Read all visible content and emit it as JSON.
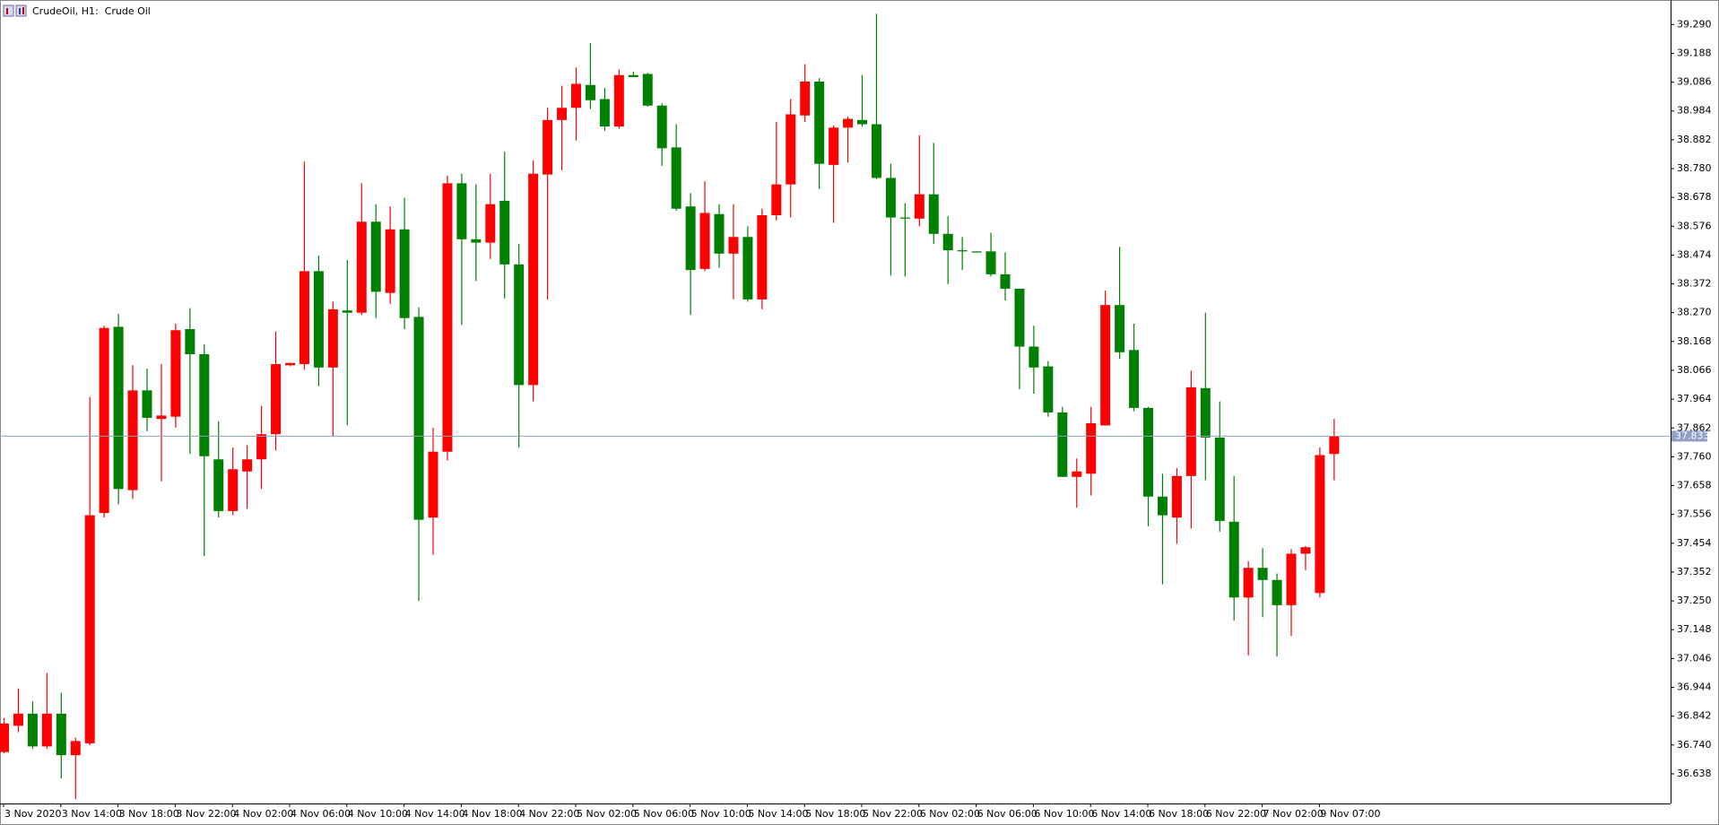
{
  "chart_data": {
    "type": "candlestick",
    "title": "CrudeOil, H1:  Crude Oil",
    "categories": [
      "3 Nov 2020",
      null,
      null,
      null,
      "3 Nov 14:00",
      null,
      null,
      null,
      "3 Nov 18:00",
      null,
      null,
      null,
      "3 Nov 22:00",
      null,
      null,
      null,
      "4 Nov 02:00",
      null,
      null,
      null,
      "4 Nov 06:00",
      null,
      null,
      null,
      "4 Nov 10:00",
      null,
      null,
      null,
      "4 Nov 14:00",
      null,
      null,
      null,
      "4 Nov 18:00",
      null,
      null,
      null,
      "4 Nov 22:00",
      null,
      null,
      null,
      "5 Nov 02:00",
      null,
      null,
      null,
      "5 Nov 06:00",
      null,
      null,
      null,
      "5 Nov 10:00",
      null,
      null,
      null,
      "5 Nov 14:00",
      null,
      null,
      null,
      "5 Nov 18:00",
      null,
      null,
      null,
      "5 Nov 22:00",
      null,
      null,
      null,
      "6 Nov 02:00",
      null,
      null,
      null,
      "6 Nov 06:00",
      null,
      null,
      null,
      "6 Nov 10:00",
      null,
      null,
      null,
      "6 Nov 14:00",
      null,
      null,
      null,
      "6 Nov 18:00",
      null,
      null,
      null,
      "6 Nov 22:00",
      null,
      null,
      null,
      "7 Nov 02:00",
      null,
      null,
      null,
      "9 Nov 07:00",
      null
    ],
    "open": [
      36.715,
      36.808,
      36.851,
      36.735,
      36.851,
      36.704,
      36.746,
      37.561,
      38.22,
      37.642,
      37.995,
      37.894,
      37.902,
      38.212,
      38.123,
      37.751,
      37.568,
      37.708,
      37.751,
      37.84,
      38.084,
      38.088,
      38.417,
      38.076,
      38.278,
      38.27,
      38.592,
      38.34,
      38.565,
      38.255,
      37.545,
      37.778,
      38.728,
      38.53,
      38.518,
      38.666,
      38.441,
      38.014,
      38.759,
      38.952,
      38.995,
      39.076,
      39.026,
      38.929,
      39.111,
      39.115,
      39.003,
      38.855,
      38.646,
      38.425,
      38.619,
      38.479,
      38.538,
      38.317,
      38.615,
      38.724,
      38.968,
      39.088,
      38.793,
      38.925,
      38.952,
      38.937,
      38.747,
      38.607,
      38.603,
      38.689,
      38.549,
      38.491,
      38.487,
      38.487,
      38.406,
      38.355,
      38.15,
      38.08,
      37.917,
      37.689,
      37.7,
      37.871,
      38.297,
      38.138,
      37.933,
      37.619,
      37.545,
      37.692,
      38.003,
      37.828,
      37.53,
      37.262,
      37.367,
      37.324,
      37.235,
      37.417,
      37.278,
      37.77
    ],
    "high": [
      36.836,
      36.94,
      36.894,
      36.995,
      36.925,
      36.766,
      37.972,
      38.224,
      38.266,
      38.084,
      38.072,
      38.088,
      38.231,
      38.286,
      38.158,
      37.886,
      37.793,
      37.801,
      37.94,
      38.204,
      38.092,
      38.805,
      38.472,
      38.309,
      38.456,
      38.728,
      38.654,
      38.646,
      38.677,
      38.289,
      37.863,
      38.755,
      38.762,
      38.724,
      38.762,
      38.84,
      38.514,
      38.809,
      38.995,
      39.073,
      39.138,
      39.224,
      39.065,
      39.131,
      39.123,
      39.119,
      39.011,
      38.937,
      38.693,
      38.735,
      38.654,
      38.654,
      38.576,
      38.638,
      38.945,
      39.026,
      39.15,
      39.1,
      38.933,
      38.964,
      39.111,
      39.328,
      38.797,
      38.658,
      38.898,
      38.871,
      38.611,
      38.538,
      38.487,
      38.553,
      38.483,
      38.355,
      38.224,
      38.099,
      37.937,
      37.754,
      37.937,
      38.348,
      38.503,
      38.231,
      37.937,
      37.7,
      37.72,
      38.065,
      38.27,
      37.956,
      37.692,
      37.39,
      37.437,
      37.347,
      37.433,
      37.444,
      37.793,
      37.894
    ],
    "low": [
      36.71,
      36.785,
      36.727,
      36.727,
      36.622,
      36.549,
      36.739,
      37.545,
      37.592,
      37.611,
      37.851,
      37.673,
      37.863,
      37.77,
      37.409,
      37.545,
      37.553,
      37.576,
      37.646,
      37.782,
      38.08,
      38.068,
      38.01,
      37.832,
      37.871,
      38.262,
      38.251,
      38.301,
      38.212,
      37.25,
      37.413,
      37.747,
      38.227,
      38.382,
      38.46,
      38.32,
      37.793,
      37.956,
      38.317,
      38.774,
      38.879,
      38.991,
      38.914,
      38.921,
      39.104,
      38.999,
      38.79,
      38.631,
      38.262,
      38.417,
      38.429,
      38.317,
      38.309,
      38.282,
      38.596,
      38.607,
      38.945,
      38.708,
      38.588,
      38.801,
      38.929,
      38.743,
      38.402,
      38.398,
      38.576,
      38.514,
      38.371,
      38.421,
      38.483,
      38.398,
      38.313,
      37.999,
      37.983,
      37.902,
      37.689,
      37.58,
      37.623,
      37.871,
      38.107,
      37.921,
      37.514,
      37.309,
      37.452,
      37.506,
      37.677,
      37.495,
      37.181,
      37.057,
      37.192,
      37.053,
      37.126,
      37.359,
      37.262,
      37.677
    ],
    "close": [
      36.816,
      36.851,
      36.735,
      36.851,
      36.704,
      36.754,
      37.553,
      38.216,
      37.646,
      37.995,
      37.898,
      37.906,
      38.208,
      38.123,
      37.762,
      37.568,
      37.716,
      37.751,
      37.84,
      38.088,
      38.092,
      38.417,
      38.076,
      38.282,
      38.27,
      38.592,
      38.344,
      38.565,
      38.251,
      37.537,
      37.778,
      38.728,
      38.53,
      38.518,
      38.654,
      38.441,
      38.014,
      38.762,
      38.952,
      38.995,
      39.08,
      39.022,
      38.929,
      39.111,
      39.104,
      39.003,
      38.852,
      38.638,
      38.421,
      38.623,
      38.479,
      38.538,
      38.317,
      38.615,
      38.724,
      38.972,
      39.088,
      38.797,
      38.925,
      38.956,
      38.937,
      38.747,
      38.607,
      38.603,
      38.689,
      38.549,
      38.491,
      38.487,
      38.483,
      38.406,
      38.355,
      38.15,
      38.076,
      37.917,
      37.689,
      37.708,
      37.879,
      38.297,
      38.13,
      37.933,
      37.619,
      37.553,
      37.692,
      38.006,
      37.828,
      37.533,
      37.262,
      37.367,
      37.324,
      37.235,
      37.417,
      37.44,
      37.766,
      37.833
    ],
    "up_color": "#ff0000",
    "down_color": "#008000",
    "current_price": 37.833,
    "current_price_color": "#8fa0c4",
    "ylim": [
      36.533,
      39.364
    ],
    "yticks": [
      36.638,
      {
        "value": 36.74,
        "label": "36.740"
      },
      36.842,
      36.944,
      37.046,
      37.148,
      {
        "value": 37.25,
        "label": "37.250"
      },
      37.352,
      37.454,
      37.556,
      37.658,
      {
        "value": 37.76,
        "label": "37.760"
      },
      37.862,
      37.964,
      38.066,
      38.168,
      {
        "value": 38.27,
        "label": "38.270"
      },
      38.372,
      38.474,
      38.576,
      38.678,
      {
        "value": 38.78,
        "label": "38.780"
      },
      38.882,
      38.984,
      39.086,
      39.188,
      {
        "value": 39.29,
        "label": "39.290"
      }
    ],
    "grid": false
  }
}
